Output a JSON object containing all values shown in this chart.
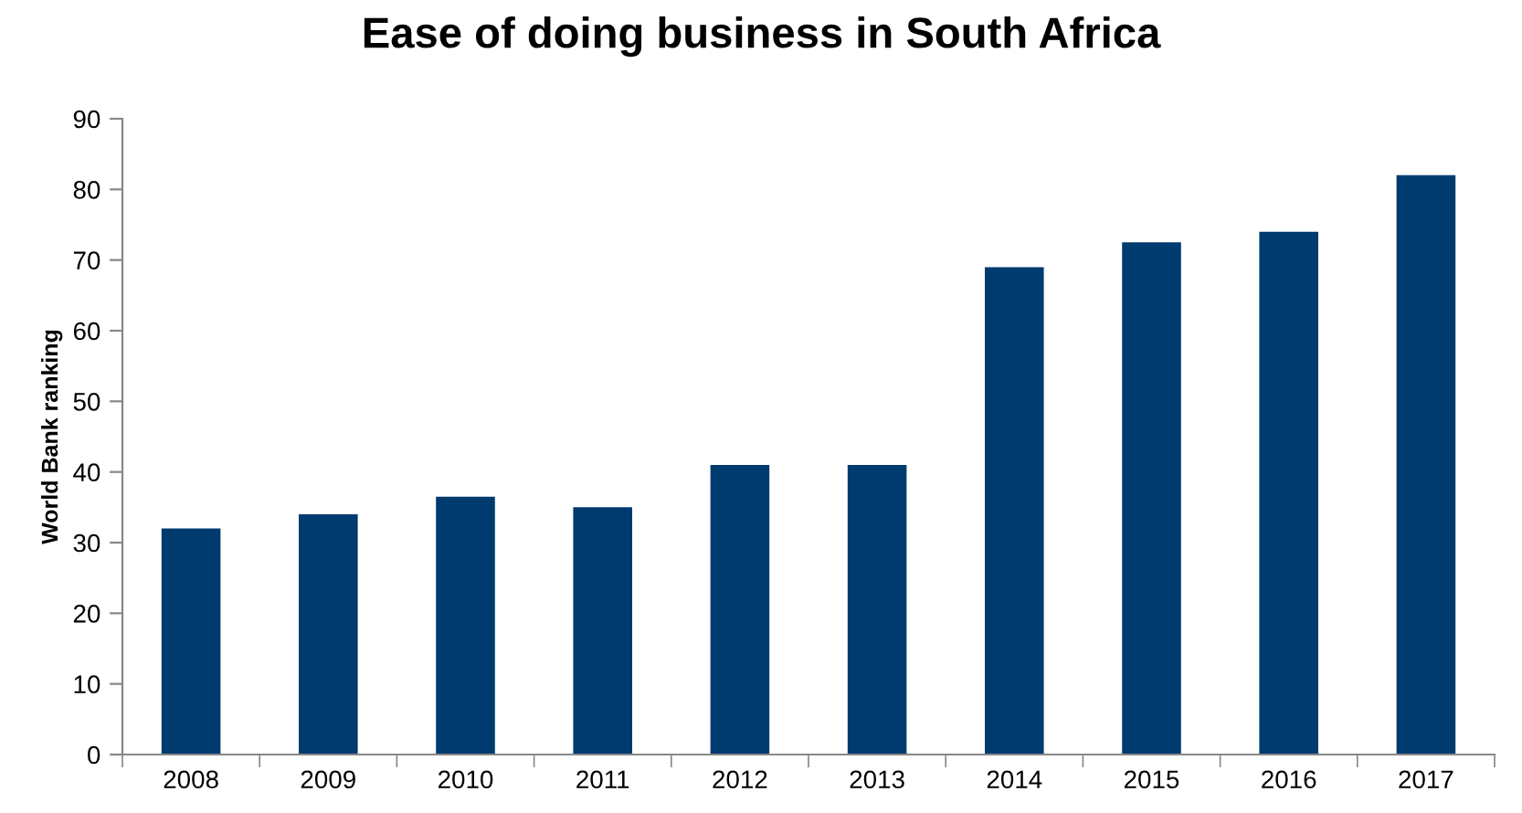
{
  "chart_data": {
    "type": "bar",
    "title": "Ease of doing business in South Africa",
    "ylabel": "World Bank ranking",
    "categories": [
      "2008",
      "2009",
      "2010",
      "2011",
      "2012",
      "2013",
      "2014",
      "2015",
      "2016",
      "2017"
    ],
    "values": [
      32,
      34,
      36.5,
      35,
      41,
      41,
      69,
      72.5,
      74,
      82
    ],
    "color": "#003b6f",
    "ylim": [
      0,
      90
    ],
    "yticks": [
      0,
      10,
      20,
      30,
      40,
      50,
      60,
      70,
      80,
      90
    ],
    "grid": false
  }
}
